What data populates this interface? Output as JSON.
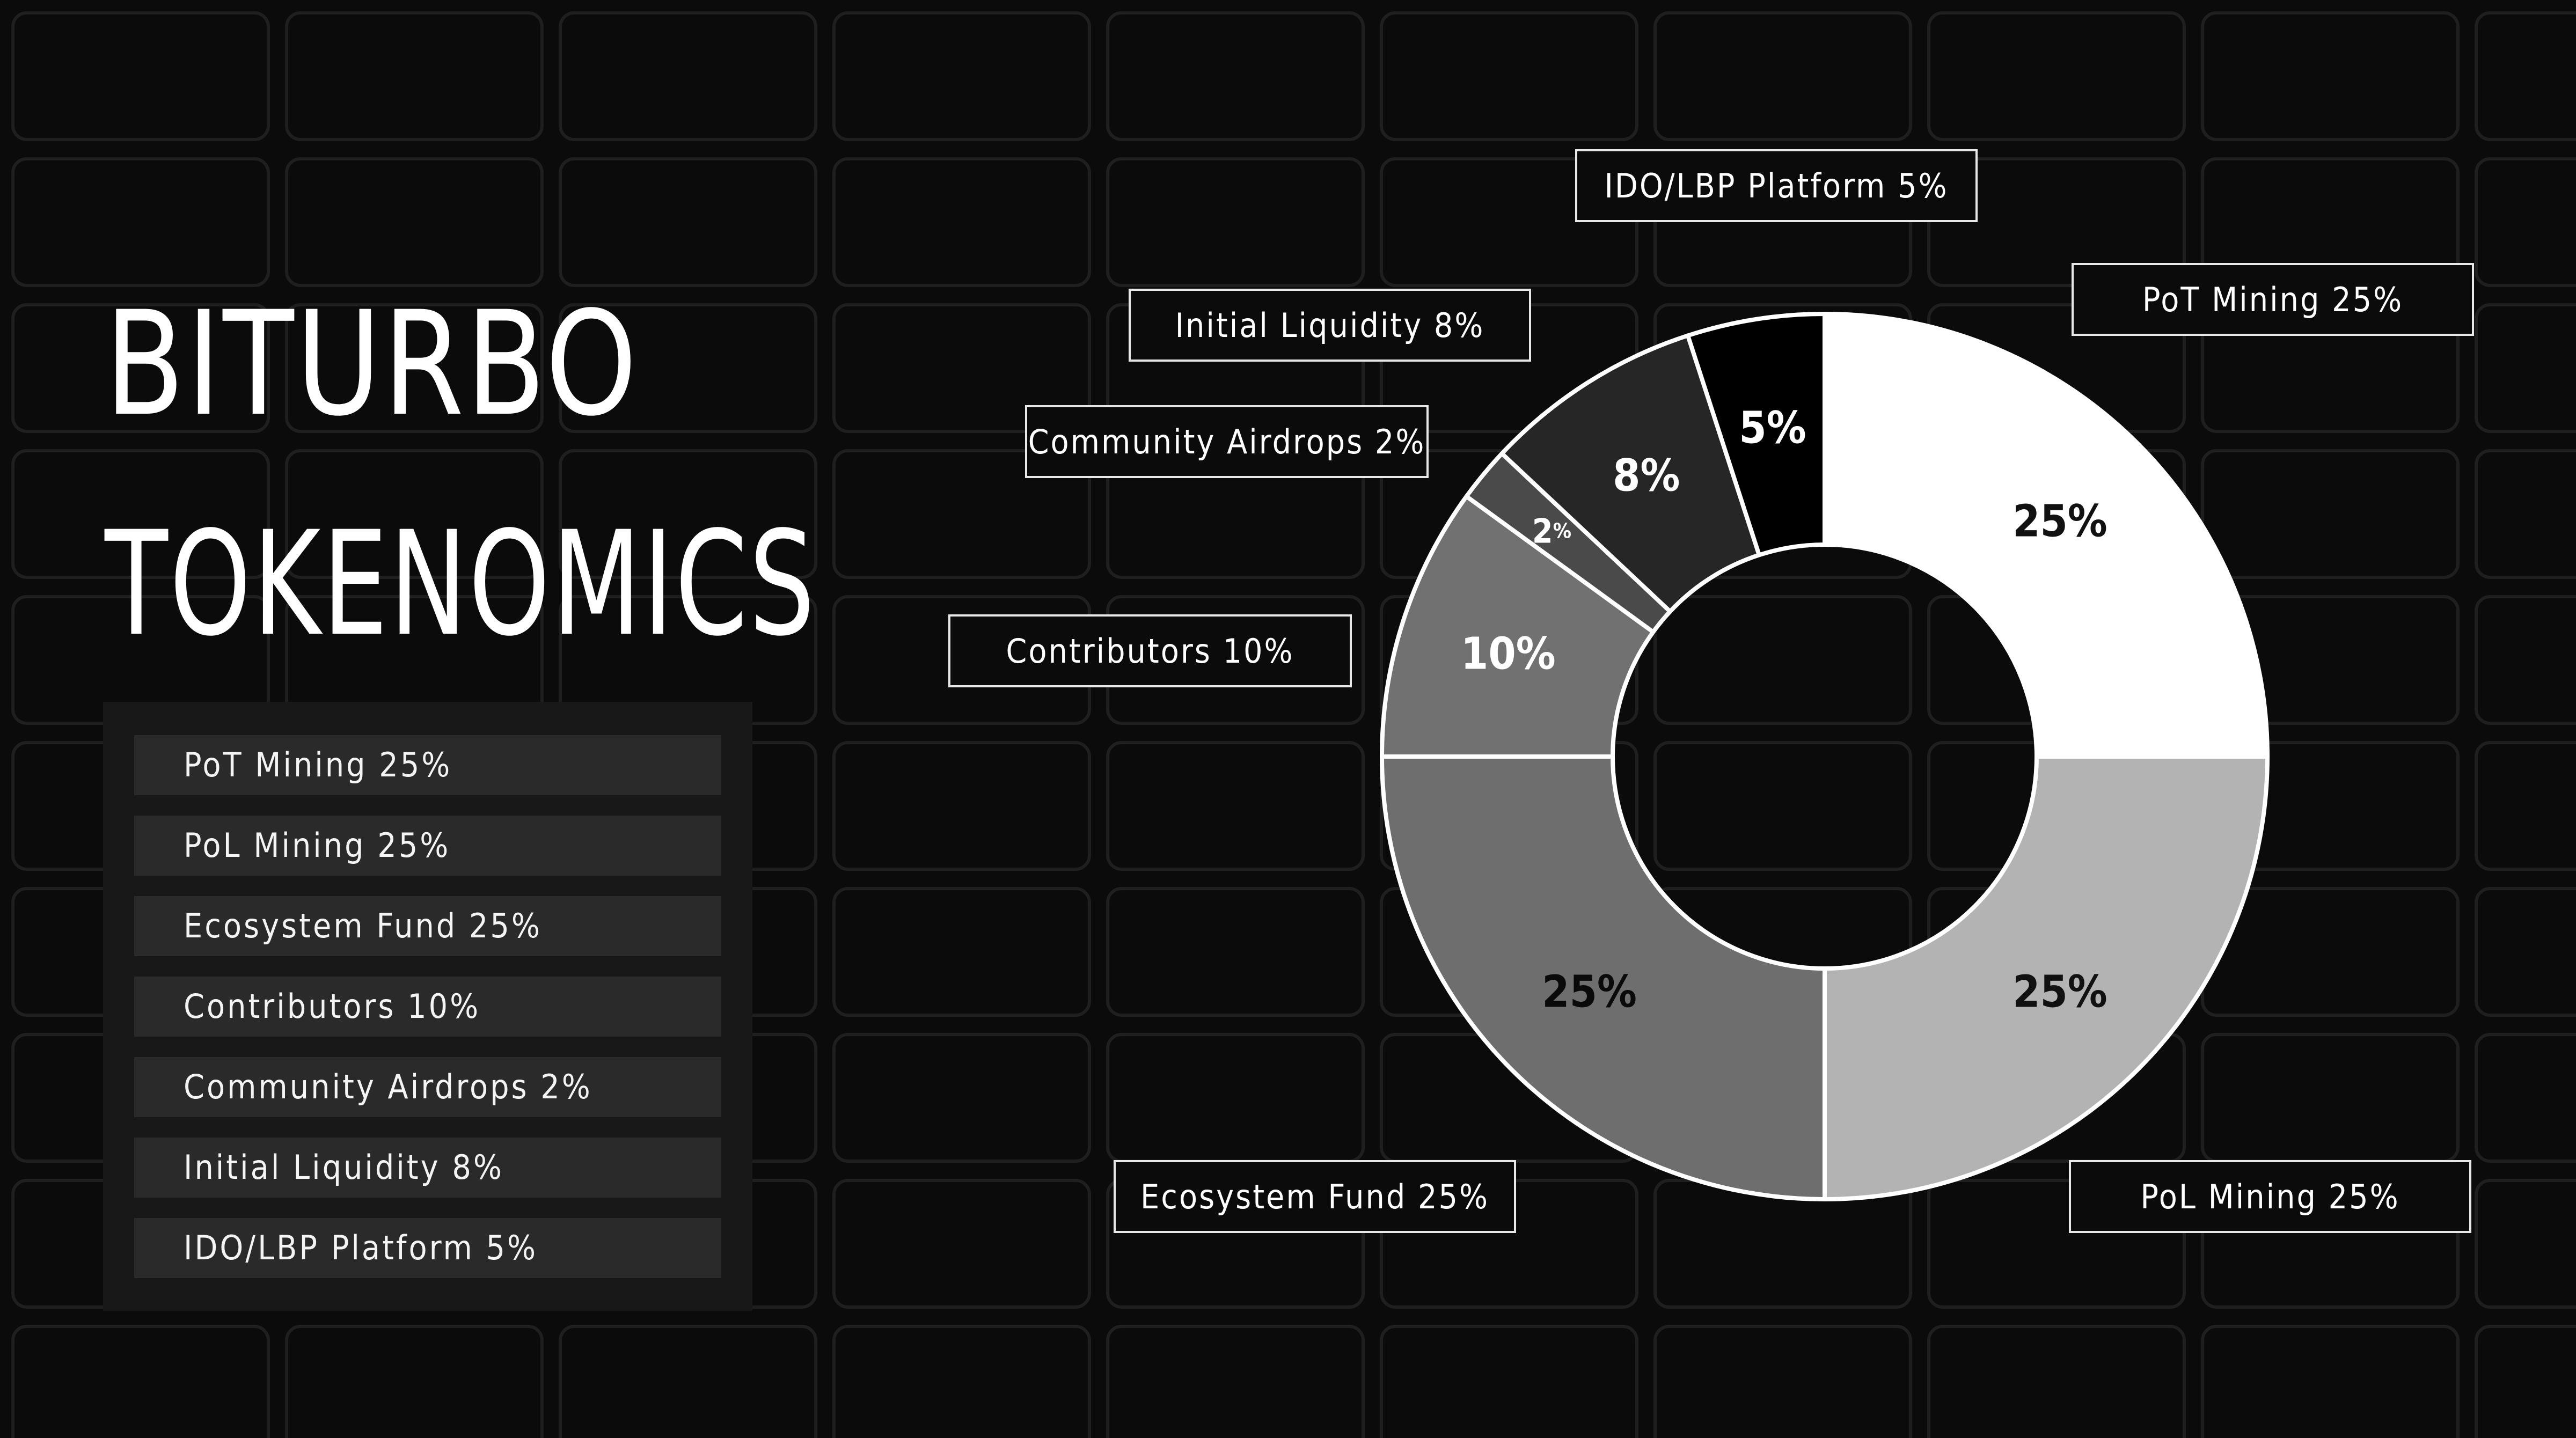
{
  "title": {
    "line1": "BITURBO",
    "line2": "TOKENOMICS"
  },
  "legend": [
    {
      "label": "PoT Mining 25%"
    },
    {
      "label": "PoL Mining 25%"
    },
    {
      "label": "Ecosystem Fund 25%"
    },
    {
      "label": "Contributors 10%"
    },
    {
      "label": "Community Airdrops 2%"
    },
    {
      "label": "Initial Liquidity 8%"
    },
    {
      "label": "IDO/LBP Platform 5%"
    }
  ],
  "callouts": {
    "pot_mining": "PoT Mining 25%",
    "pol_mining": "PoL Mining 25%",
    "ecosystem_fund": "Ecosystem Fund 25%",
    "contributors": "Contributors 10%",
    "community_airdrops": "Community Airdrops 2%",
    "initial_liquidity": "Initial Liquidity 8%",
    "ido_lbp_platform": "IDO/LBP Platform 5%"
  },
  "colors": {
    "background": "#0b0b0b",
    "grid_cell": "#1f1f1f",
    "panel": "#181818",
    "row": "#2a2a2a",
    "text": "#ffffff",
    "slice_outline": "#ffffff"
  },
  "chart_data": {
    "type": "pie",
    "donut": true,
    "start": "top",
    "direction": "clockwise",
    "categories": [
      "PoT Mining",
      "PoL Mining",
      "Ecosystem Fund",
      "Contributors",
      "Community Airdrops",
      "Initial Liquidity",
      "IDO/LBP Platform"
    ],
    "values": [
      25,
      25,
      25,
      10,
      2,
      8,
      5
    ],
    "data_labels": [
      {
        "num": "25",
        "unit": "%"
      },
      {
        "num": "25",
        "unit": "%"
      },
      {
        "num": "25",
        "unit": "%"
      },
      {
        "num": "10",
        "unit": "%"
      },
      {
        "num": "2",
        "unit": "%"
      },
      {
        "num": "8",
        "unit": "%"
      },
      {
        "num": "5",
        "unit": "%"
      }
    ],
    "slice_colors": [
      "#ffffff",
      "#b3b3b3",
      "#6e6e6e",
      "#717171",
      "#4a4a4a",
      "#262626",
      "#000000"
    ],
    "label_colors": [
      "#111111",
      "#111111",
      "#0a0a0a",
      "#ffffff",
      "#ffffff",
      "#ffffff",
      "#ffffff"
    ]
  }
}
